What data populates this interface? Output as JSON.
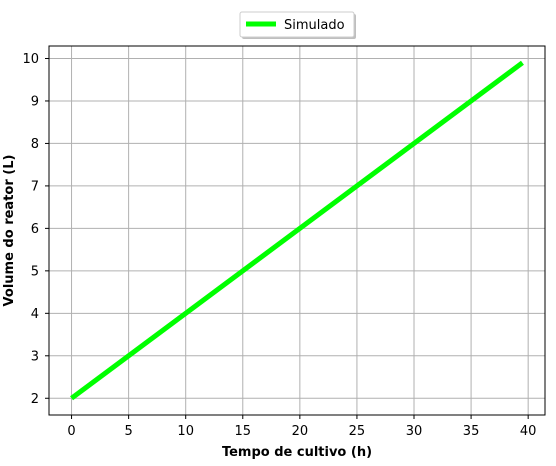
{
  "chart_data": {
    "type": "line",
    "xlabel": "Tempo de cultivo (h)",
    "ylabel": "Volume do reator (L)",
    "xlim": [
      -1.975,
      41.475
    ],
    "ylim": [
      1.606,
      10.294
    ],
    "xticks": [
      0,
      5,
      10,
      15,
      20,
      25,
      30,
      35,
      40
    ],
    "yticks": [
      2,
      3,
      4,
      5,
      6,
      7,
      8,
      9,
      10
    ],
    "grid": true,
    "legend_position": "top-center",
    "series": [
      {
        "name": "Simulado",
        "color": "#00ff00",
        "x": [
          0,
          39.5
        ],
        "y": [
          2.0,
          9.9
        ]
      }
    ]
  }
}
